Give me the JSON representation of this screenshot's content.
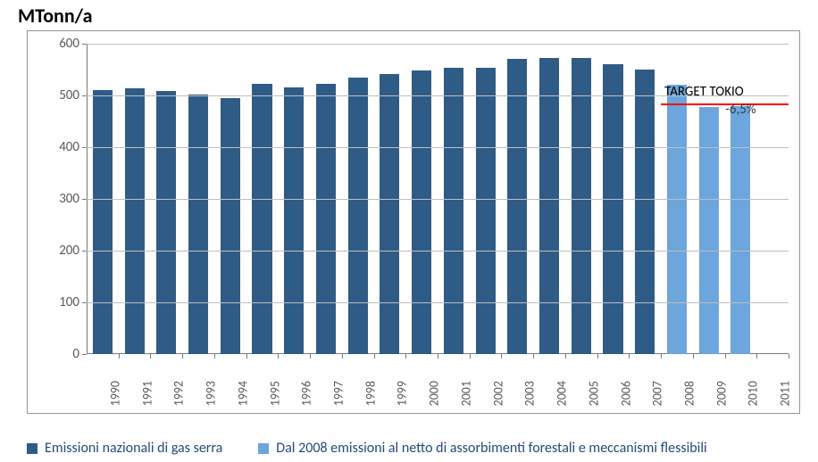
{
  "chart": {
    "type": "bar",
    "yaxis_title": "MTonn/a",
    "yaxis_title_fontsize": 22,
    "yaxis_title_fontweight": "bold",
    "background_color": "#ffffff",
    "frame_border_color": "#949494",
    "grid_color": "#bfbfbf",
    "axis_color": "#7a7a7a",
    "tick_label_color": "#595959",
    "tick_label_fontsize": 15,
    "xtick_label_fontsize": 14,
    "ylim": [
      0,
      600
    ],
    "ytick_step": 100,
    "yticks": [
      0,
      100,
      200,
      300,
      400,
      500,
      600
    ],
    "categories": [
      "1990",
      "1991",
      "1992",
      "1993",
      "1994",
      "1995",
      "1996",
      "1997",
      "1998",
      "1999",
      "2000",
      "2001",
      "2002",
      "2003",
      "2004",
      "2005",
      "2006",
      "2007",
      "2008",
      "2009",
      "2010",
      "2011"
    ],
    "series1": {
      "name": "Emissioni nazionali di gas serra",
      "color": "#2f5b87",
      "values": [
        510,
        513,
        508,
        502,
        495,
        522,
        515,
        522,
        535,
        542,
        548,
        553,
        553,
        570,
        573,
        573,
        560,
        550,
        null,
        null,
        null,
        null
      ]
    },
    "series2": {
      "name": "Dal 2008 emissioni  al netto di  assorbimenti forestali e meccanismi flessibili",
      "color": "#6ca6dc",
      "values": [
        null,
        null,
        null,
        null,
        null,
        null,
        null,
        null,
        null,
        null,
        null,
        null,
        null,
        null,
        null,
        null,
        null,
        null,
        520,
        478,
        480,
        null
      ]
    },
    "bar_width_ratio": 0.62,
    "target": {
      "label": "TARGET TOKIO",
      "value": 485,
      "line_color": "#ff0000",
      "line_start_category": "2008",
      "line_end_category": "2011",
      "pct_label": "-6,5%",
      "label_fontsize": 15
    },
    "legend": {
      "text_color": "#244a7a",
      "fontsize": 16,
      "swatch_size": 12
    }
  }
}
